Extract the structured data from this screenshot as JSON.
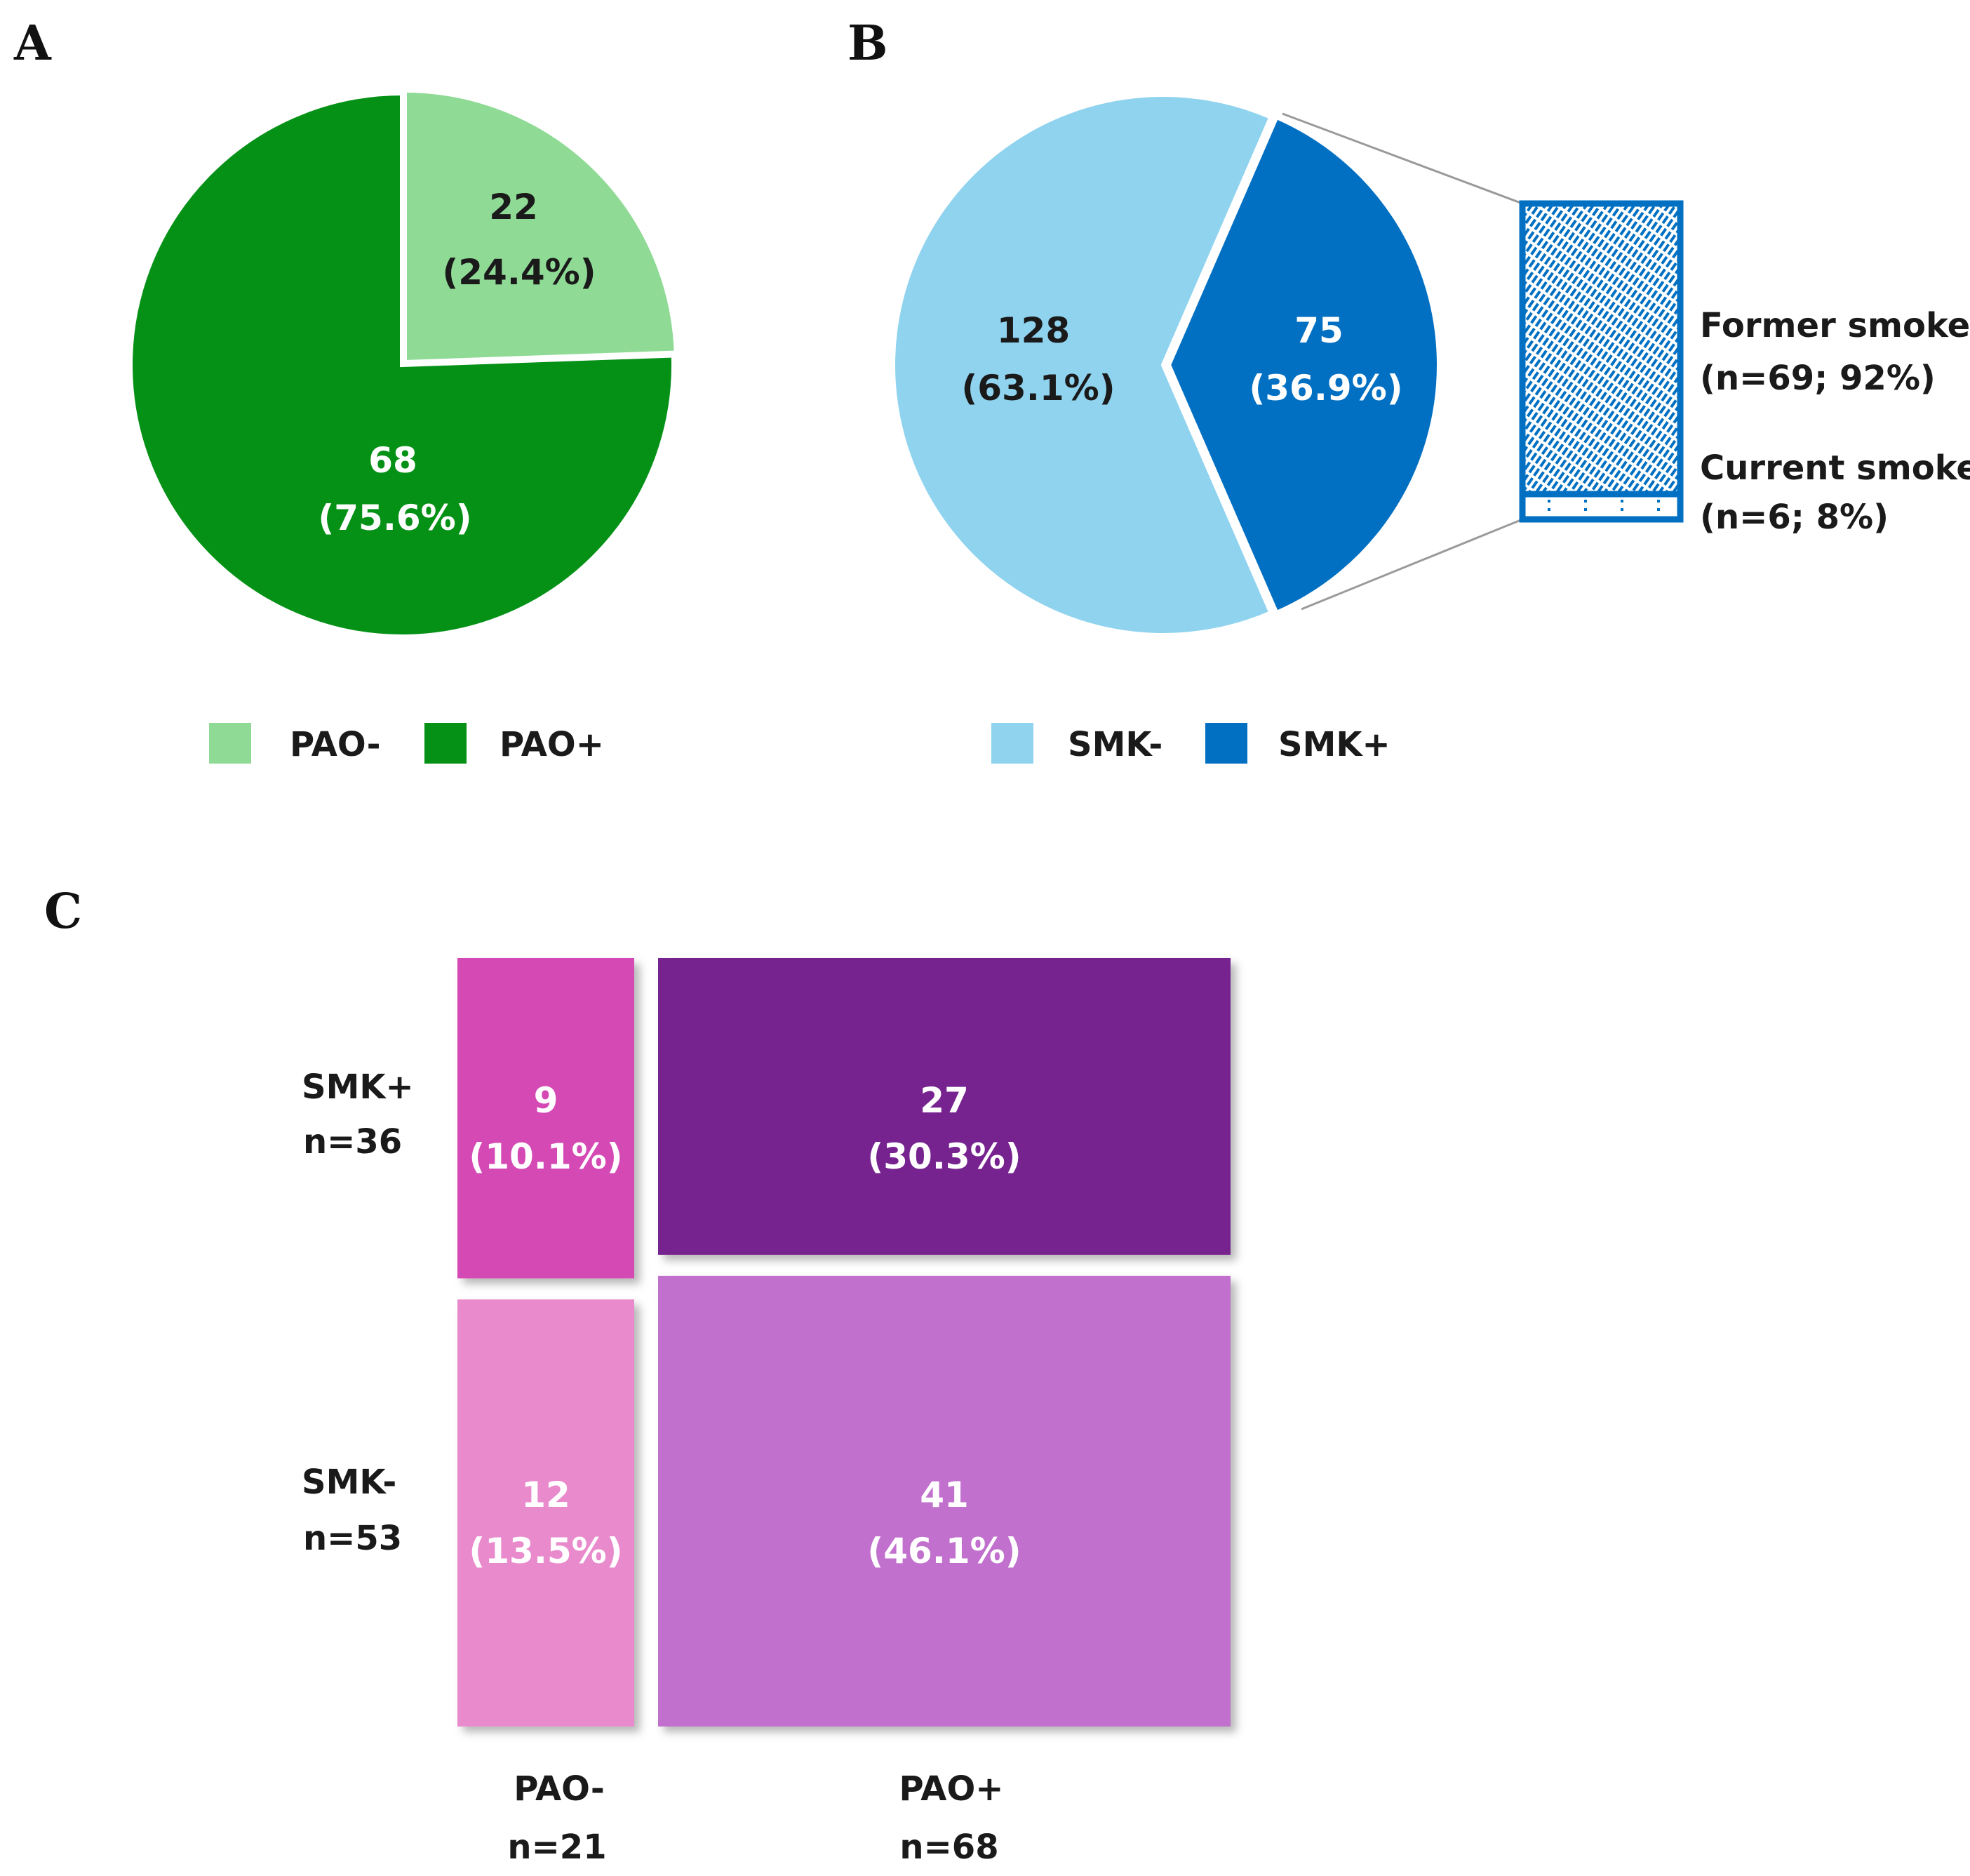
{
  "panels": {
    "a": "A",
    "b": "B",
    "c": "C"
  },
  "chart_data": [
    {
      "type": "pie",
      "panel": "A",
      "title": "",
      "legend": [
        "PAO-",
        "PAO+"
      ],
      "legend_placement": "bottom",
      "slices": [
        {
          "name": "PAO-",
          "value": 22,
          "percent_label": "(24.4%)",
          "color": "#8fda95",
          "exploded": true
        },
        {
          "name": "PAO+",
          "value": 68,
          "percent_label": "(75.6%)",
          "color": "#059116"
        }
      ]
    },
    {
      "type": "pie",
      "panel": "B",
      "title": "",
      "legend": [
        "SMK-",
        "SMK+"
      ],
      "legend_placement": "bottom",
      "slices": [
        {
          "name": "SMK-",
          "value": 128,
          "percent_label": "(63.1%)",
          "color": "#8fd3ef"
        },
        {
          "name": "SMK+",
          "value": 75,
          "percent_label": "(36.9%)",
          "color": "#0270c2",
          "exploded": true
        }
      ],
      "breakdown": {
        "of": "SMK+",
        "type": "stacked-bar",
        "color": "#0270c2",
        "segments": [
          {
            "name": "Former smoker",
            "label": "(n=69; 92%)",
            "value": 69,
            "percent": 92
          },
          {
            "name": "Current smoker",
            "label": "(n=6; 8%)",
            "value": 6,
            "percent": 8
          }
        ]
      }
    },
    {
      "type": "mosaic",
      "panel": "C",
      "title": "",
      "columns": [
        {
          "name": "PAO-",
          "n_label": "n=21",
          "n": 21
        },
        {
          "name": "PAO+",
          "n_label": "n=68",
          "n": 68
        }
      ],
      "rows": [
        {
          "name": "SMK+",
          "n_label": "n=36",
          "n": 36
        },
        {
          "name": "SMK-",
          "n_label": "n=53",
          "n": 53
        }
      ],
      "cells": [
        {
          "row": "SMK+",
          "col": "PAO-",
          "value": 9,
          "percent_label": "(10.1%)",
          "color": "#d54ab5"
        },
        {
          "row": "SMK+",
          "col": "PAO+",
          "value": 27,
          "percent_label": "(30.3%)",
          "color": "#76248f"
        },
        {
          "row": "SMK-",
          "col": "PAO-",
          "value": 12,
          "percent_label": "(13.5%)",
          "color": "#e98acd"
        },
        {
          "row": "SMK-",
          "col": "PAO+",
          "value": 41,
          "percent_label": "(46.1%)",
          "color": "#c170cd"
        }
      ]
    }
  ]
}
